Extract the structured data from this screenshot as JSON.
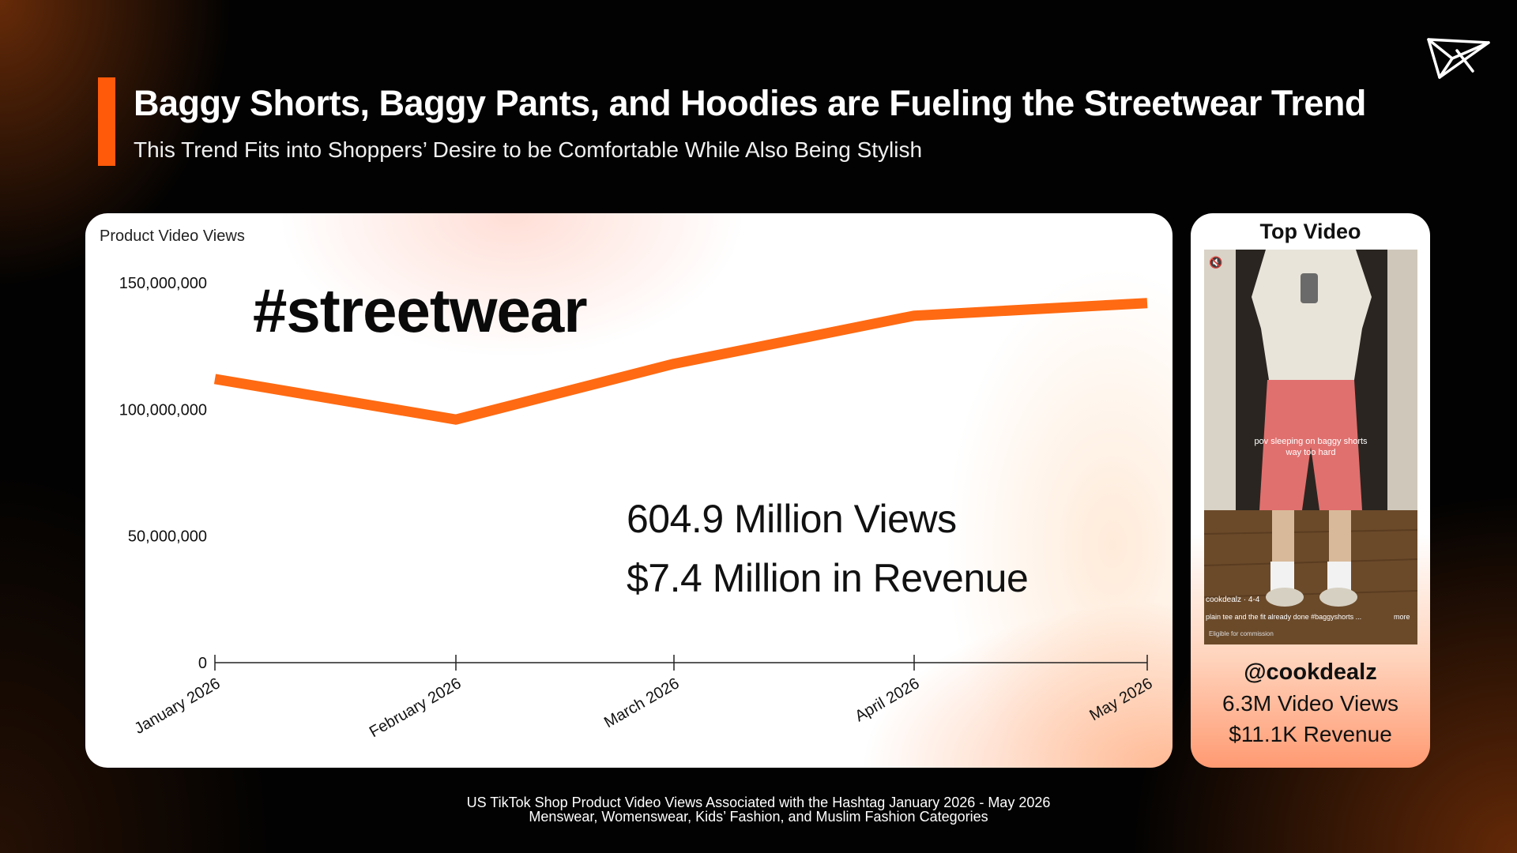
{
  "header": {
    "title": "Baggy Shorts, Baggy Pants, and Hoodies are Fueling the Streetwear Trend",
    "subtitle": "This Trend Fits into Shoppers’ Desire to be Comfortable While Also Being Stylish",
    "accent_color": "#ff5a0a",
    "logo_icon": "paper-plane-bird-icon"
  },
  "chart_data": {
    "type": "line",
    "ylabel": "Product Video Views",
    "categories": [
      "January 2026",
      "February 2026",
      "March 2026",
      "April 2026",
      "May 2026"
    ],
    "values": [
      112000000,
      96000000,
      118000000,
      137000000,
      142000000
    ],
    "ylim": [
      0,
      150000000
    ],
    "yticks": [
      0,
      50000000,
      100000000,
      150000000
    ],
    "ytick_labels": [
      "0",
      "50,000,000",
      "100,000,000",
      "150,000,000"
    ],
    "line_color": "#ff6a12",
    "grid": false,
    "annotation": "#streetwear",
    "stats": {
      "views": "604.9 Million Views",
      "revenue": "$7.4 Million in Revenue"
    }
  },
  "top_video": {
    "title": "Top Video",
    "caption_line1": "pov sleeping on baggy shorts",
    "caption_line2": "way too hard",
    "overlay_user": "cookdealz · 4-4",
    "overlay_desc": "plain tee and the fit already done #baggyshorts ...",
    "overlay_more": "more",
    "overlay_eligible": "Eligible for commission",
    "handle": "@cookdealz",
    "views": "6.3M Video Views",
    "revenue": "$11.1K Revenue"
  },
  "footnote": {
    "line1": "US TikTok Shop Product Video Views Associated with the Hashtag January 2026 - May 2026",
    "line2": "Menswear, Womenswear, Kids’ Fashion, and Muslim Fashion Categories"
  }
}
